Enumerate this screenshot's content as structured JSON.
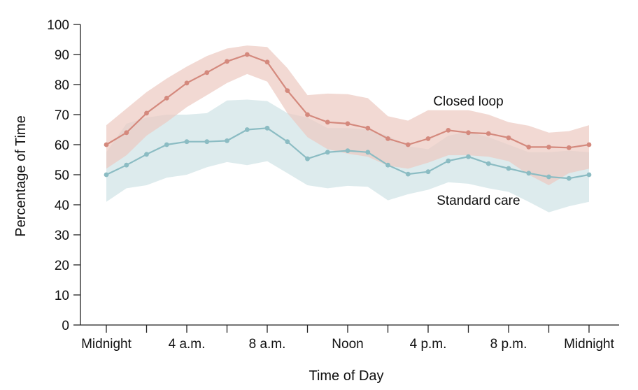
{
  "chart_data": {
    "type": "line",
    "title": "",
    "xlabel": "Time of Day",
    "ylabel": "Percentage of Time",
    "ylim": [
      0,
      100
    ],
    "yticks": [
      0,
      10,
      20,
      30,
      40,
      50,
      60,
      70,
      80,
      90,
      100
    ],
    "xlim": [
      0,
      24
    ],
    "xticks": [
      {
        "x": 0,
        "label": "Midnight"
      },
      {
        "x": 4,
        "label": "4 a.m."
      },
      {
        "x": 8,
        "label": "8 a.m."
      },
      {
        "x": 12,
        "label": "Noon"
      },
      {
        "x": 16,
        "label": "4 p.m."
      },
      {
        "x": 20,
        "label": "8 p.m."
      },
      {
        "x": 24,
        "label": "Midnight"
      }
    ],
    "grid": false,
    "x": [
      0,
      1,
      2,
      3,
      4,
      5,
      6,
      7,
      8,
      9,
      10,
      11,
      12,
      13,
      14,
      15,
      16,
      17,
      18,
      19,
      20,
      21,
      22,
      23,
      24
    ],
    "series": [
      {
        "name": "Closed loop",
        "color": "#d4897d",
        "band_color": "#ecc9c1",
        "values": [
          60,
          64,
          70.5,
          75.5,
          80.5,
          84,
          87.7,
          90,
          87.5,
          78,
          70,
          67.5,
          67,
          65.5,
          62,
          60,
          62,
          64.8,
          64,
          63.7,
          62.3,
          59.2,
          59.2,
          59,
          60
        ],
        "upper": [
          66.5,
          72,
          77.5,
          82,
          86,
          89.5,
          92,
          93,
          92.5,
          85.5,
          76.5,
          77,
          76.8,
          75.5,
          69.5,
          68,
          71.5,
          71.5,
          71.5,
          70,
          67.5,
          66.3,
          64,
          64.5,
          66.5
        ],
        "lower": [
          52,
          56.5,
          63,
          67.5,
          72.5,
          76.5,
          80.5,
          83.5,
          81,
          70.5,
          62.5,
          58.5,
          57,
          56,
          53,
          52,
          54,
          56.5,
          56.5,
          56,
          54.5,
          50,
          46.5,
          50.5,
          52
        ]
      },
      {
        "name": "Standard care",
        "color": "#8bbcc3",
        "band_color": "#d7e8ea",
        "values": [
          50,
          53.2,
          56.8,
          60,
          61,
          61,
          61.3,
          65,
          65.5,
          61,
          55.3,
          57.5,
          58,
          57.5,
          53.2,
          50.2,
          51,
          54.6,
          56,
          53.7,
          52.1,
          50.5,
          49.3,
          48.8,
          50
        ],
        "upper": [
          57.5,
          67,
          69,
          70,
          70,
          70.5,
          74.7,
          75,
          74.5,
          70.5,
          69,
          65.5,
          65.5,
          65,
          63,
          59.5,
          58.5,
          63,
          64.3,
          62.5,
          60,
          57.5,
          57.5,
          58,
          57.5
        ],
        "lower": [
          41,
          45.5,
          46.5,
          49,
          50,
          52.5,
          54.2,
          53.2,
          54.5,
          50.5,
          46.5,
          45.5,
          46.3,
          46,
          41.5,
          43.5,
          45,
          47.5,
          47,
          45.5,
          44.3,
          41,
          37.5,
          39.5,
          41
        ]
      }
    ],
    "annotations": [
      {
        "text": "Closed loop",
        "x": 18,
        "y": 73
      },
      {
        "text": "Standard care",
        "x": 18.5,
        "y": 40
      }
    ]
  }
}
